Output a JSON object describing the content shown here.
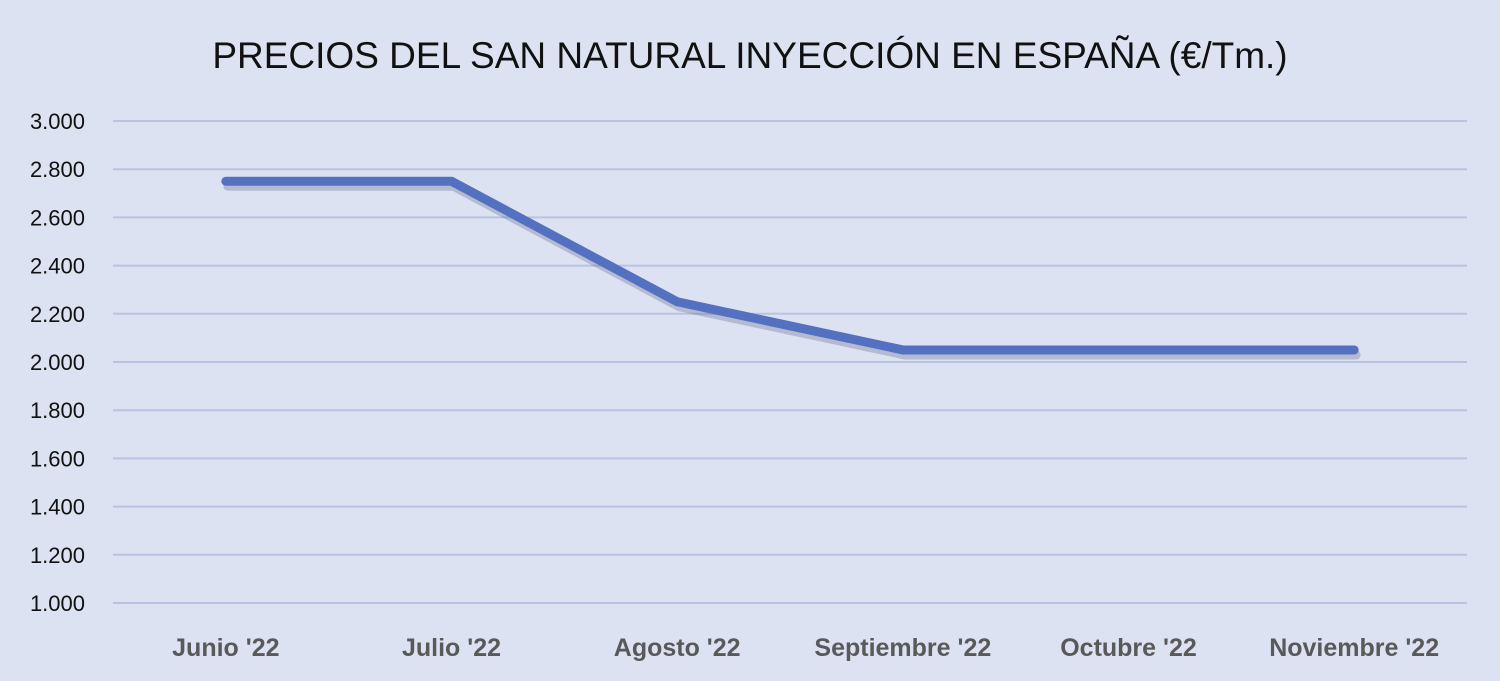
{
  "chart_data": {
    "type": "line",
    "title": "PRECIOS DEL SAN NATURAL INYECCIÓN EN ESPAÑA (€/Tm.)",
    "xlabel": "",
    "ylabel": "",
    "categories": [
      "Junio '22",
      "Julio '22",
      "Agosto '22",
      "Septiembre '22",
      "Octubre '22",
      "Noviembre '22"
    ],
    "series": [
      {
        "name": "Precio",
        "values": [
          2750,
          2750,
          2250,
          2050,
          2050,
          2050
        ],
        "color": "#5470c1"
      }
    ],
    "ylim": [
      1000,
      3000
    ],
    "yticks": [
      1000,
      1200,
      1400,
      1600,
      1800,
      2000,
      2200,
      2400,
      2600,
      2800,
      3000
    ],
    "ytick_labels": [
      "1.000",
      "1.200",
      "1.400",
      "1.600",
      "1.800",
      "2.000",
      "2.200",
      "2.400",
      "2.600",
      "2.800",
      "3.000"
    ],
    "grid": true,
    "legend": "none",
    "colors": {
      "background": "#dde2f2",
      "grid": "#b9c4e2",
      "line": "#5470c1"
    }
  }
}
